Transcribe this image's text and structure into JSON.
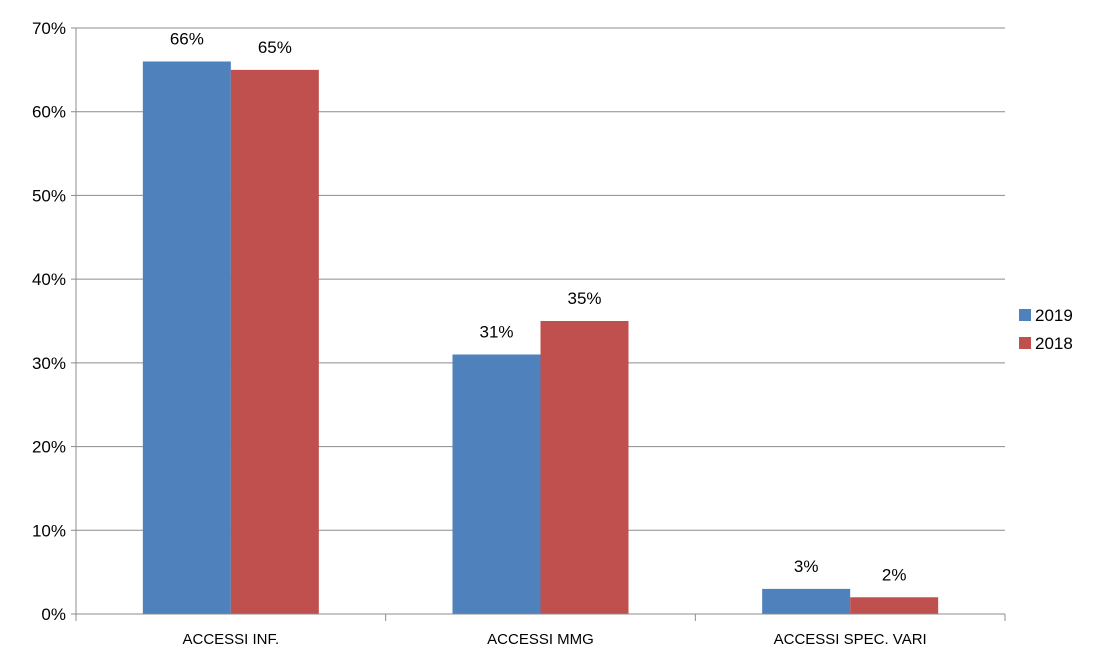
{
  "chart_data": {
    "type": "bar",
    "title": "",
    "xlabel": "",
    "ylabel": "",
    "categories": [
      "ACCESSI INF.",
      "ACCESSI MMG",
      "ACCESSI SPEC. VARI"
    ],
    "series": [
      {
        "name": "2019",
        "color": "#4f81bd",
        "values": [
          66,
          31,
          3
        ],
        "labels": [
          "66%",
          "31%",
          "3%"
        ]
      },
      {
        "name": "2018",
        "color": "#c0504d",
        "values": [
          65,
          35,
          2
        ],
        "labels": [
          "65%",
          "35%",
          "2%"
        ]
      }
    ],
    "ylim": [
      0,
      70
    ],
    "yticks": [
      0,
      10,
      20,
      30,
      40,
      50,
      60,
      70
    ],
    "ytick_labels": [
      "0%",
      "10%",
      "20%",
      "30%",
      "40%",
      "50%",
      "60%",
      "70%"
    ],
    "grid": true,
    "legend_position": "right"
  }
}
